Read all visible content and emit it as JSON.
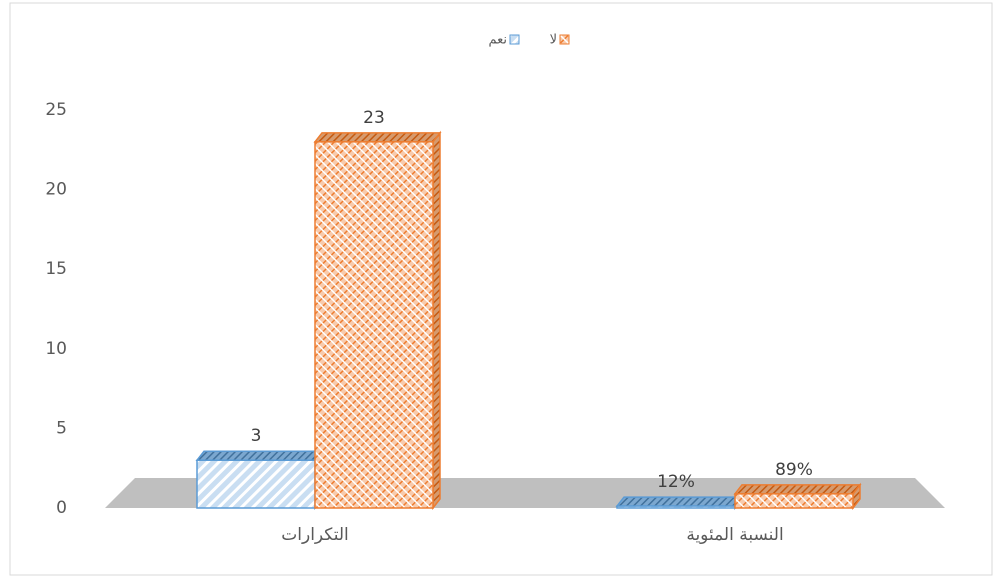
{
  "chart_data": {
    "type": "bar3d",
    "categories": [
      "التكرارات",
      "النسبة المئوية"
    ],
    "series": [
      {
        "name": "نعم",
        "color": "#5b9bd5",
        "values": [
          3,
          0.12
        ],
        "value_labels": [
          "3",
          "12%"
        ]
      },
      {
        "name": "لا",
        "color": "#ed7d31",
        "values": [
          23,
          0.89
        ],
        "value_labels": [
          "23",
          "89%"
        ]
      }
    ],
    "ylim": [
      0,
      25
    ],
    "yticks": [
      0,
      5,
      10,
      15,
      20,
      25
    ],
    "grid": false,
    "legend": "top"
  }
}
